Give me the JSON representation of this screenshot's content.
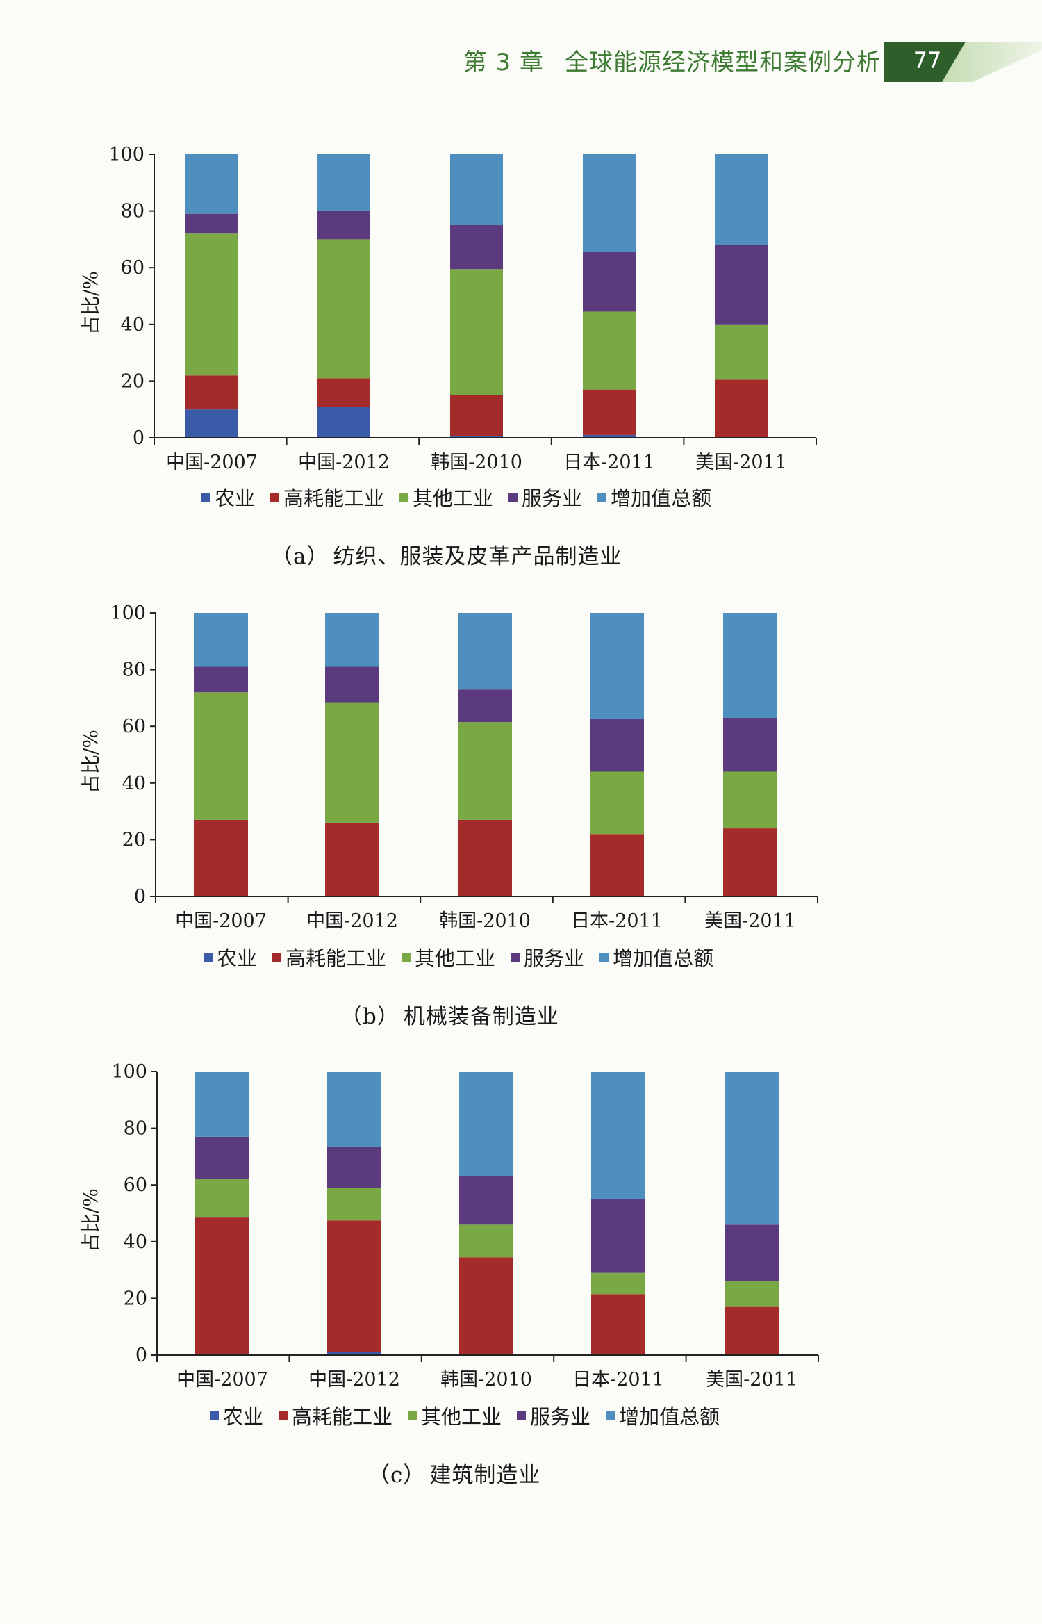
{
  "header": {
    "chapter_label": "第 3 章",
    "chapter_title": "全球能源经济模型和案例分析",
    "page_number": "77",
    "tab_color": "#2e5f2a",
    "tab_fade_color": "#b9d6a3"
  },
  "colors": {
    "agriculture": "#3b5ba8",
    "high_energy_industry": "#a52a2a",
    "other_industry": "#79a844",
    "services": "#5b3a7e",
    "value_added_total": "#4f8fbf"
  },
  "legend": [
    "农业",
    "高耗能工业",
    "其他工业",
    "服务业",
    "增加值总额"
  ],
  "chart_data": [
    {
      "type": "bar",
      "stacked": true,
      "caption_label": "（a）",
      "caption": "纺织、服装及皮革产品制造业",
      "ylabel": "占比/%",
      "xlabel": "",
      "ylim": [
        0,
        100
      ],
      "yticks": [
        "0",
        "20",
        "40",
        "60",
        "80",
        "100"
      ],
      "categories": [
        "中国-2007",
        "中国-2012",
        "韩国-2010",
        "日本-2011",
        "美国-2011"
      ],
      "series": [
        {
          "name": "农业",
          "values": [
            10,
            11,
            0.5,
            1,
            0
          ]
        },
        {
          "name": "高耗能工业",
          "values": [
            12,
            10,
            14.5,
            16,
            20.5
          ]
        },
        {
          "name": "其他工业",
          "values": [
            50,
            49,
            44.5,
            27.5,
            19.5
          ]
        },
        {
          "name": "服务业",
          "values": [
            7,
            10,
            15.5,
            21,
            28
          ]
        },
        {
          "name": "增加值总额",
          "values": [
            21,
            20,
            25,
            34.5,
            32
          ]
        }
      ]
    },
    {
      "type": "bar",
      "stacked": true,
      "caption_label": "（b）",
      "caption": "机械装备制造业",
      "ylabel": "占比/%",
      "xlabel": "",
      "ylim": [
        0,
        100
      ],
      "yticks": [
        "0",
        "20",
        "40",
        "60",
        "80",
        "100"
      ],
      "categories": [
        "中国-2007",
        "中国-2012",
        "韩国-2010",
        "日本-2011",
        "美国-2011"
      ],
      "series": [
        {
          "name": "农业",
          "values": [
            0,
            0,
            0,
            0,
            0
          ]
        },
        {
          "name": "高耗能工业",
          "values": [
            27,
            26,
            27,
            22,
            24
          ]
        },
        {
          "name": "其他工业",
          "values": [
            45,
            42.5,
            34.5,
            22,
            20
          ]
        },
        {
          "name": "服务业",
          "values": [
            9,
            12.5,
            11.5,
            18.5,
            19
          ]
        },
        {
          "name": "增加值总额",
          "values": [
            19,
            19,
            27,
            37.5,
            37
          ]
        }
      ]
    },
    {
      "type": "bar",
      "stacked": true,
      "caption_label": "（c）",
      "caption": "建筑制造业",
      "ylabel": "占比/%",
      "xlabel": "",
      "ylim": [
        0,
        100
      ],
      "yticks": [
        "0",
        "20",
        "40",
        "60",
        "80",
        "100"
      ],
      "categories": [
        "中国-2007",
        "中国-2012",
        "韩国-2010",
        "日本-2011",
        "美国-2011"
      ],
      "series": [
        {
          "name": "农业",
          "values": [
            0.5,
            1,
            0,
            0,
            0
          ]
        },
        {
          "name": "高耗能工业",
          "values": [
            48,
            46.5,
            34.5,
            21.5,
            17
          ]
        },
        {
          "name": "其他工业",
          "values": [
            13.5,
            11.5,
            11.5,
            7.5,
            9
          ]
        },
        {
          "name": "服务业",
          "values": [
            15,
            14.5,
            17,
            26,
            20
          ]
        },
        {
          "name": "增加值总额",
          "values": [
            23,
            26.5,
            37,
            45,
            54
          ]
        }
      ]
    }
  ]
}
